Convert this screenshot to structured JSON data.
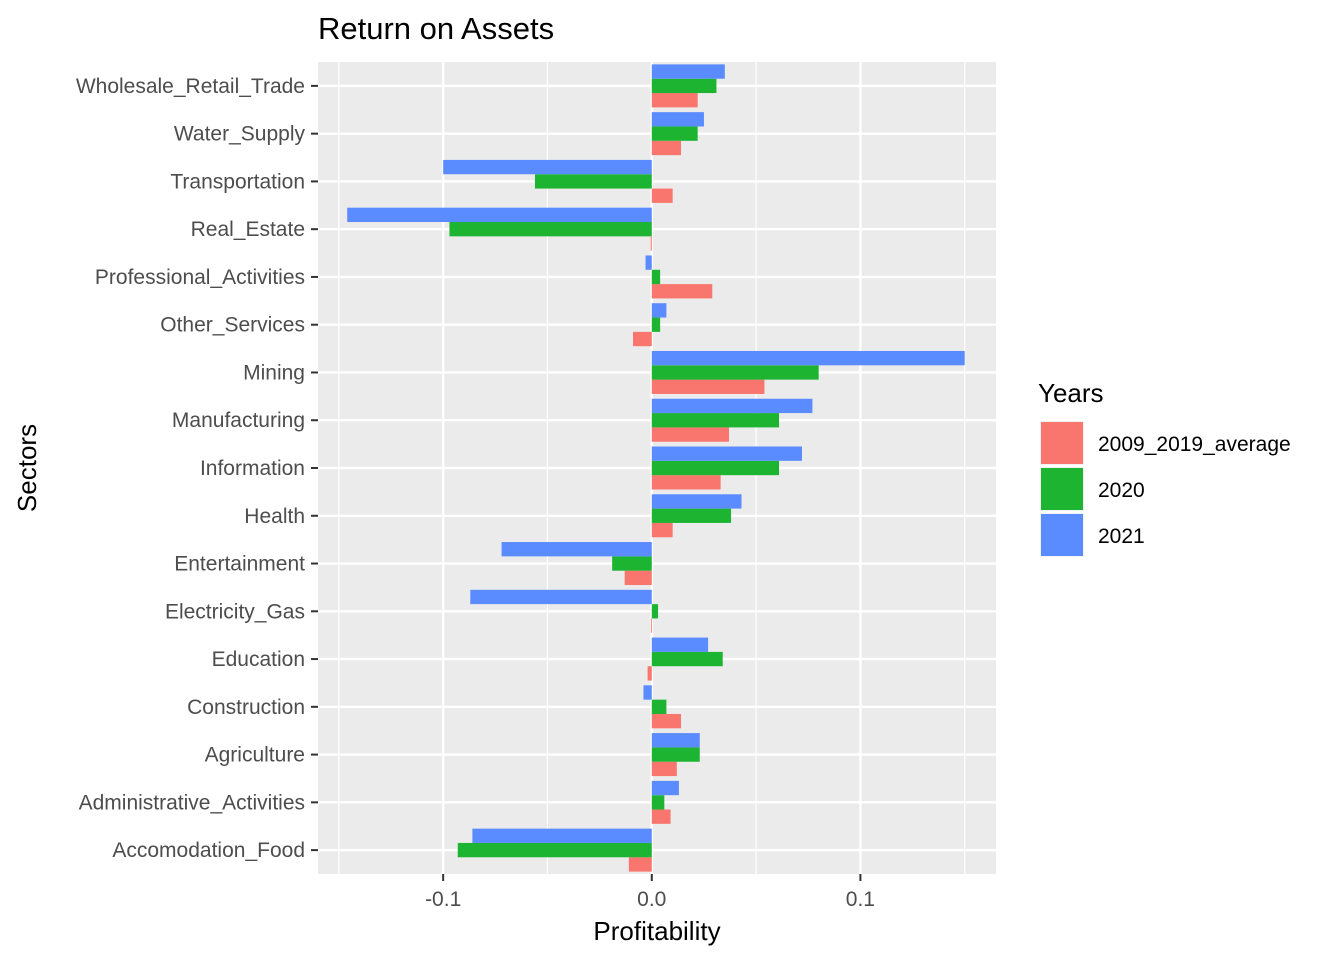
{
  "chart_data": {
    "type": "bar",
    "orientation": "horizontal",
    "title": "Return on Assets",
    "xlabel": "Profitability",
    "ylabel": "Sectors",
    "xlim": [
      -0.16,
      0.165
    ],
    "x_ticks": [
      -0.1,
      0.0,
      0.1
    ],
    "x_tick_labels": [
      "-0.1",
      "0.0",
      "0.1"
    ],
    "grid": true,
    "categories": [
      "Wholesale_Retail_Trade",
      "Water_Supply",
      "Transportation",
      "Real_Estate",
      "Professional_Activities",
      "Other_Services",
      "Mining",
      "Manufacturing",
      "Information",
      "Health",
      "Entertainment",
      "Electricity_Gas",
      "Education",
      "Construction",
      "Agriculture",
      "Administrative_Activities",
      "Accomodation_Food"
    ],
    "series": [
      {
        "name": "2009_2019_average",
        "color": "#F8766D",
        "values": [
          0.022,
          0.014,
          0.01,
          -0.0005,
          0.029,
          -0.009,
          0.054,
          0.037,
          0.033,
          0.01,
          -0.013,
          -0.0003,
          -0.002,
          0.014,
          0.012,
          0.009,
          -0.011
        ]
      },
      {
        "name": "2020",
        "color": "#1DB431",
        "values": [
          0.031,
          0.022,
          -0.056,
          -0.097,
          0.004,
          0.004,
          0.08,
          0.061,
          0.061,
          0.038,
          -0.019,
          0.003,
          0.034,
          0.007,
          0.023,
          0.006,
          -0.093
        ]
      },
      {
        "name": "2021",
        "color": "#5A8CFF",
        "values": [
          0.035,
          0.025,
          -0.1,
          -0.146,
          -0.003,
          0.007,
          0.15,
          0.077,
          0.072,
          0.043,
          -0.072,
          -0.087,
          0.027,
          -0.004,
          0.023,
          0.013,
          -0.086
        ]
      }
    ],
    "legend": {
      "title": "Years",
      "position": "right"
    }
  }
}
